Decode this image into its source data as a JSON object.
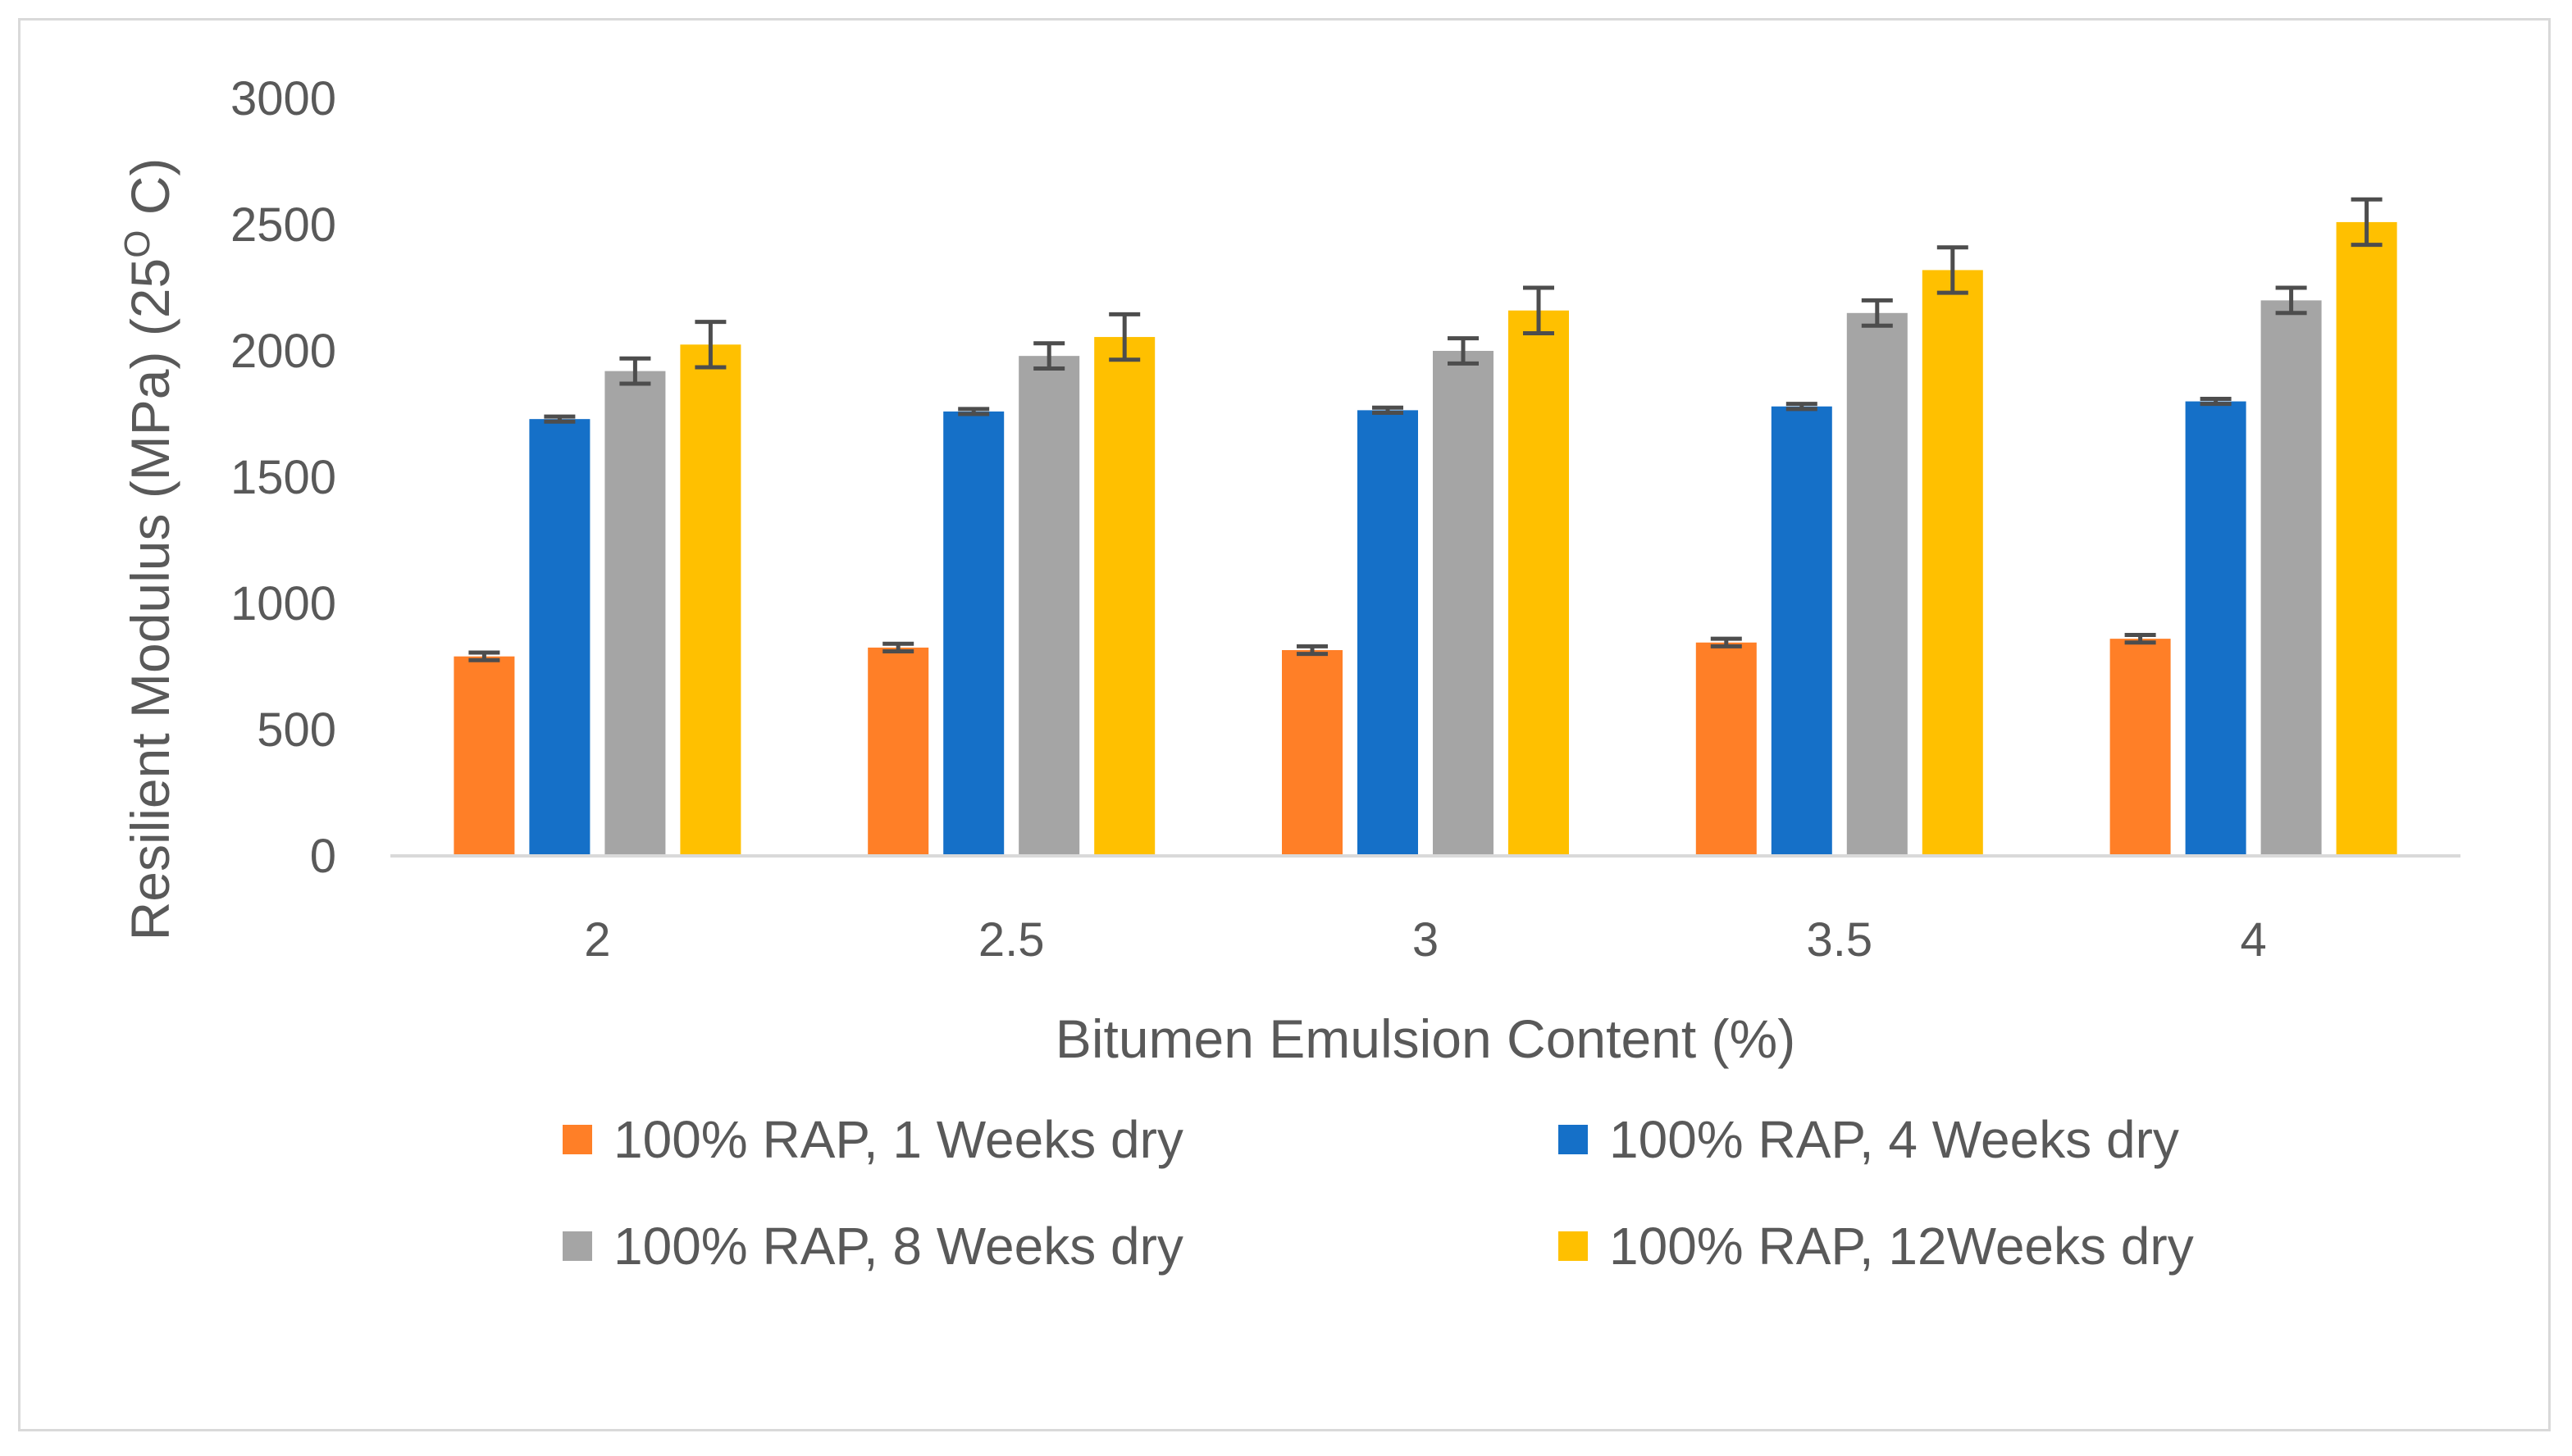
{
  "chart_data": {
    "type": "bar",
    "title": "",
    "xlabel": "Bitumen Emulsion Content (%)",
    "ylabel": "Resilient Modulus (MPa) (25",
    "ylabel_superscript": "O",
    "ylabel_suffix": " C)",
    "categories": [
      "2",
      "2.5",
      "3",
      "3.5",
      "4"
    ],
    "ylim": [
      0,
      3000
    ],
    "yticks": [
      0,
      500,
      1000,
      1500,
      2000,
      2500,
      3000
    ],
    "grid": false,
    "legend_position": "bottom",
    "series": [
      {
        "name": "100% RAP, 1 Weeks dry",
        "color": "#FF7F27",
        "values": [
          790,
          825,
          815,
          845,
          860
        ],
        "errors": [
          15,
          15,
          15,
          15,
          15
        ]
      },
      {
        "name": "100% RAP, 4 Weeks dry",
        "color": "#1570C8",
        "values": [
          1730,
          1760,
          1765,
          1780,
          1800
        ],
        "errors": [
          10,
          10,
          10,
          10,
          10
        ]
      },
      {
        "name": "100% RAP, 8 Weeks dry",
        "color": "#A5A5A5",
        "values": [
          1920,
          1980,
          2000,
          2150,
          2200
        ],
        "errors": [
          50,
          50,
          50,
          50,
          50
        ]
      },
      {
        "name": "100% RAP, 12Weeks dry",
        "color": "#FFC000",
        "values": [
          2025,
          2055,
          2160,
          2320,
          2510
        ],
        "errors": [
          90,
          90,
          90,
          90,
          90
        ]
      }
    ],
    "error_bar_color": "#4D4D4D"
  }
}
